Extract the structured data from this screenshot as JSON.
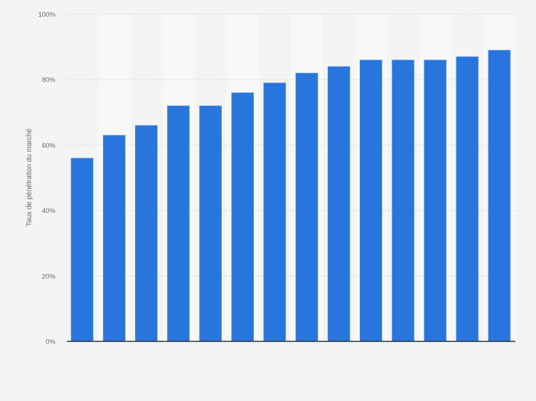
{
  "chart_data": {
    "type": "bar",
    "title": "",
    "xlabel": "",
    "ylabel": "Taux de pénétration du marché",
    "categories": [
      "",
      "",
      "",
      "",
      "",
      "",
      "",
      "",
      "",
      "",
      "",
      "",
      "",
      ""
    ],
    "values": [
      56,
      63,
      66,
      72,
      72,
      76,
      79,
      82,
      84,
      86,
      86,
      86,
      87,
      89
    ],
    "unit": "%",
    "ylim": [
      0,
      100
    ],
    "yticks": [
      "0%",
      "20%",
      "40%",
      "60%",
      "80%",
      "100%"
    ],
    "grid": true,
    "legend": "none",
    "colors": {
      "bar": "#2876dd",
      "background": "#f4f4f4",
      "band": "#f8f8f8",
      "axis": "#333333"
    }
  }
}
